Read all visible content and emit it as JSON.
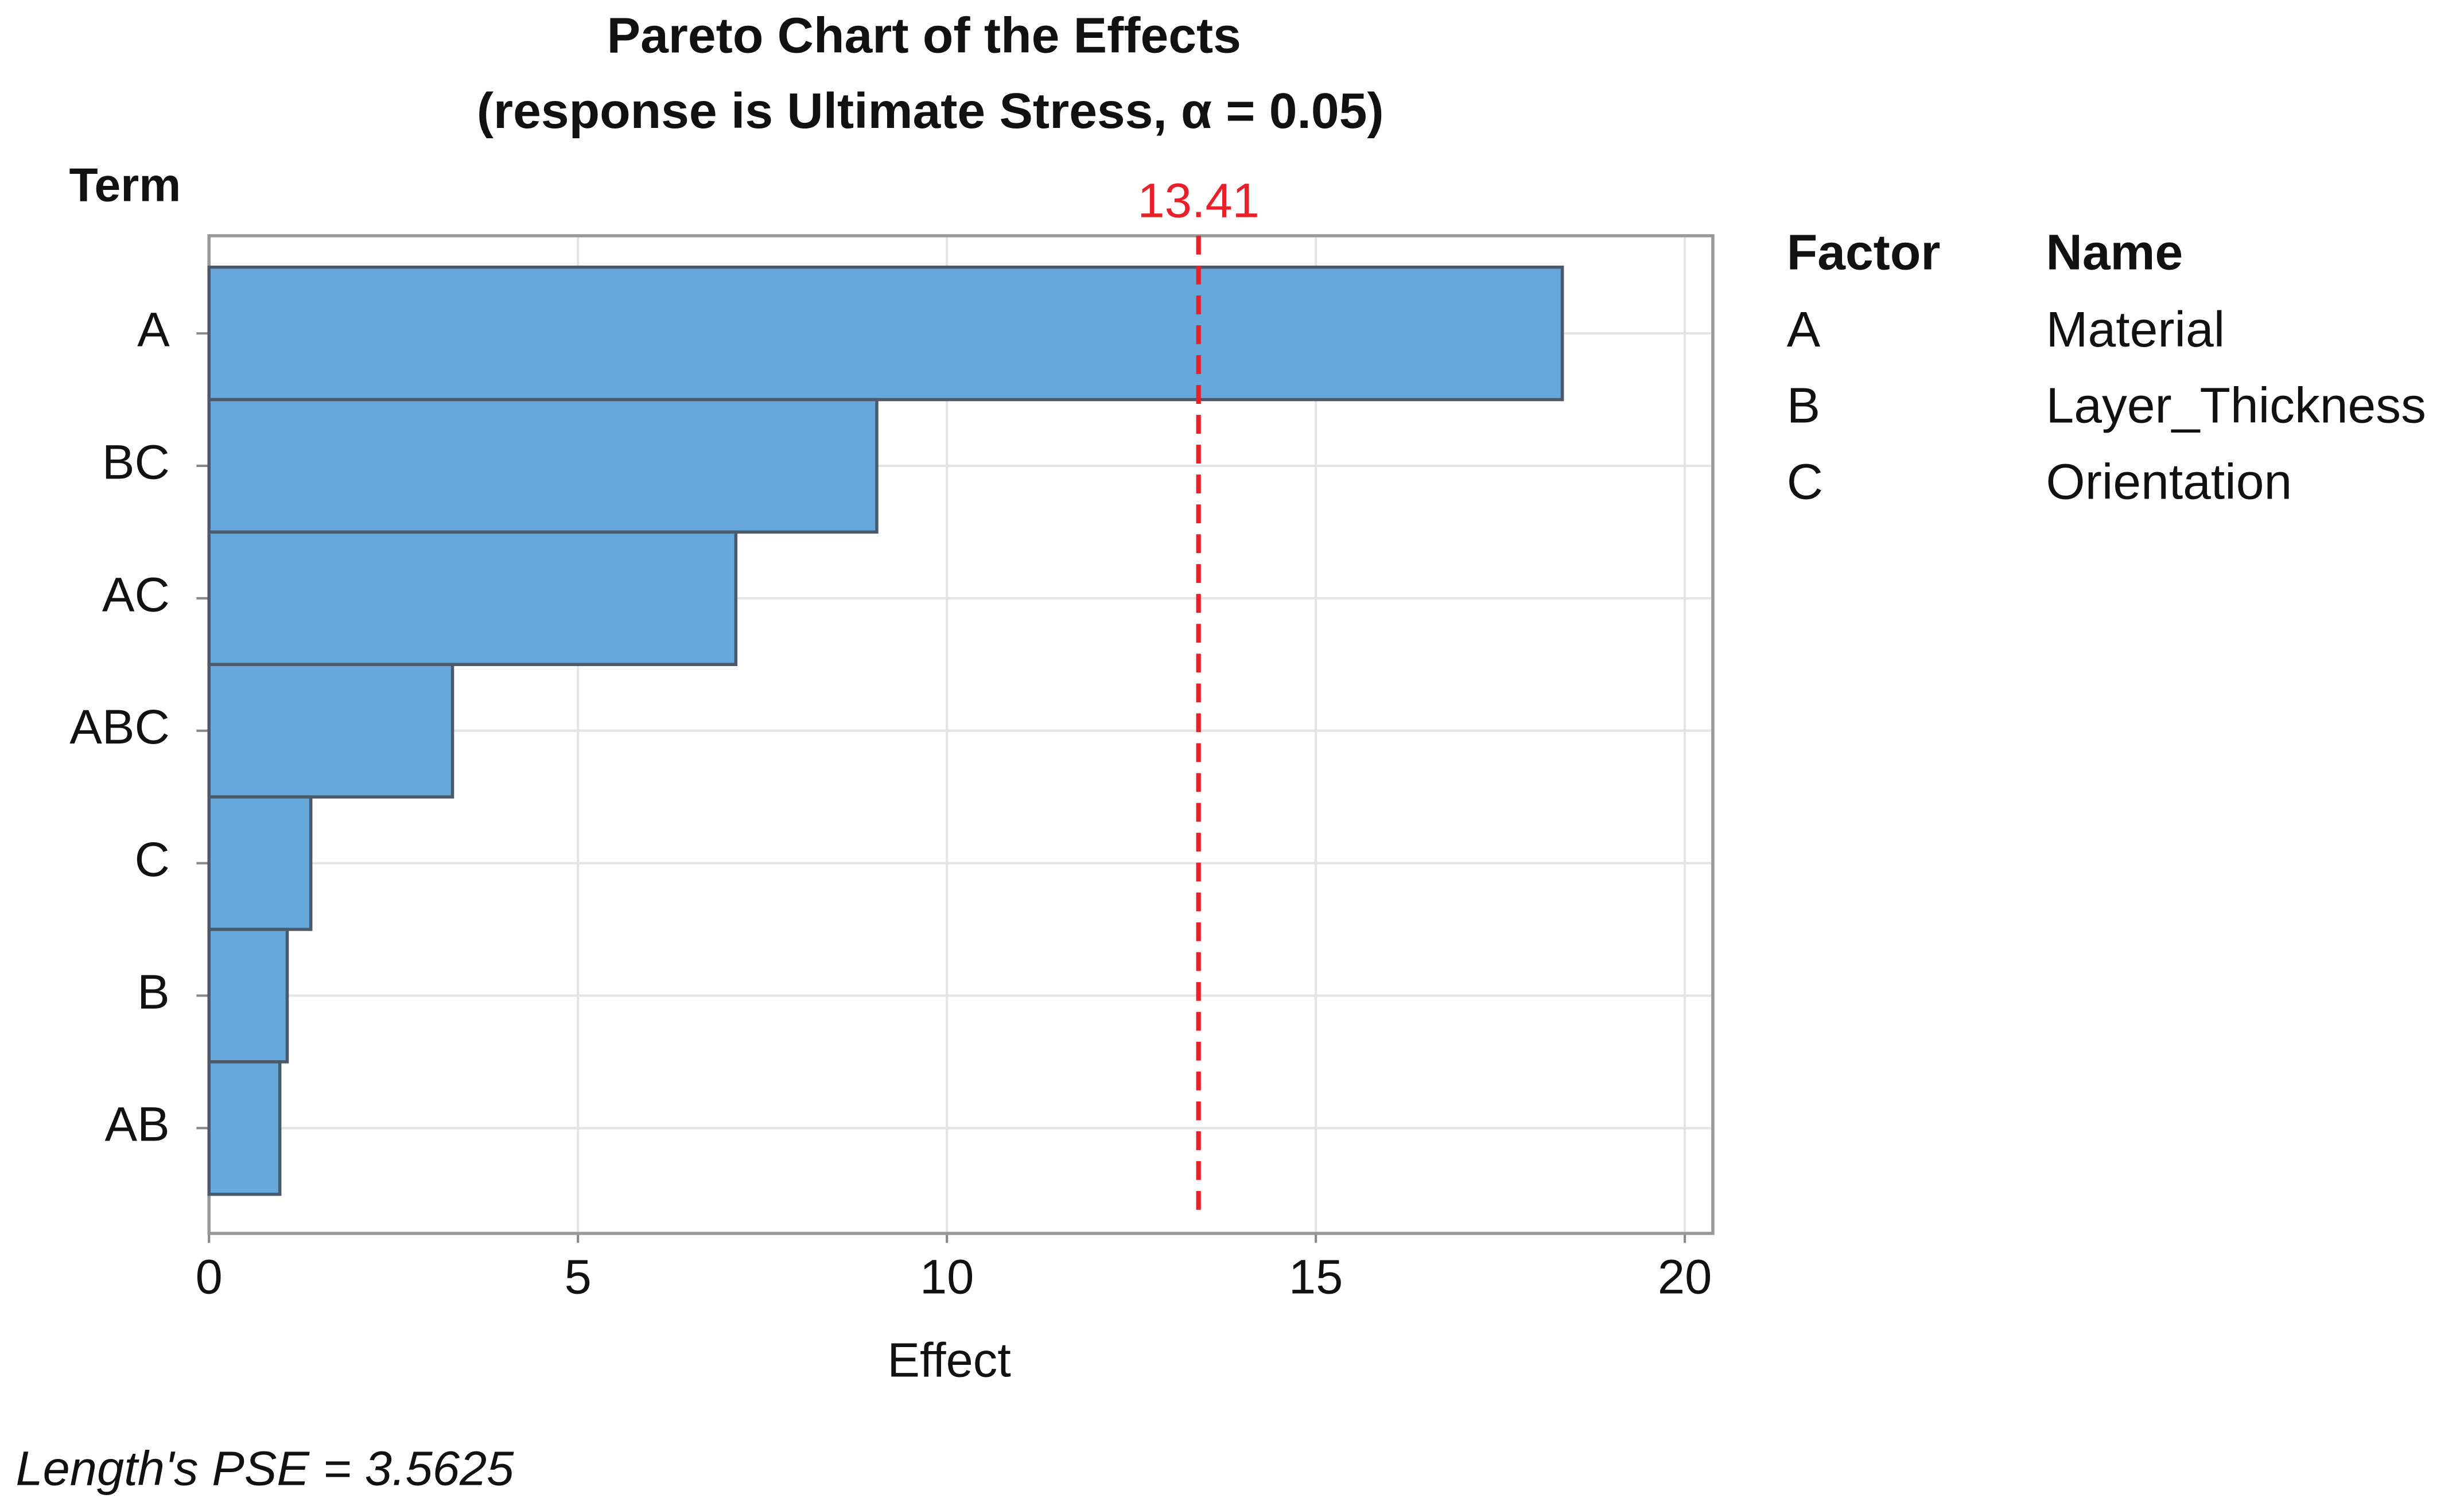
{
  "chart_data": {
    "type": "bar",
    "orientation": "horizontal",
    "title": "Pareto Chart of the Effects",
    "subtitle": "(response is Ultimate Stress, α = 0.05)",
    "x_label": "Effect",
    "y_label": "Term",
    "categories": [
      "A",
      "BC",
      "AC",
      "ABC",
      "C",
      "B",
      "AB"
    ],
    "values": [
      18.34,
      9.05,
      7.14,
      3.3,
      1.38,
      1.06,
      0.96
    ],
    "color": "#66a8db",
    "xlim": [
      0,
      20.38
    ],
    "xticks": [
      0,
      5,
      10,
      15,
      20
    ],
    "grid": true,
    "reference_line": {
      "value": 13.41,
      "color": "#e8202a"
    },
    "factor_table": {
      "headers": [
        "Factor",
        "Name"
      ],
      "rows": [
        [
          "A",
          "Material"
        ],
        [
          "B",
          "Layer_Thickness"
        ],
        [
          "C",
          "Orientation"
        ]
      ]
    },
    "footnote": "Length's PSE = 3.5625"
  }
}
